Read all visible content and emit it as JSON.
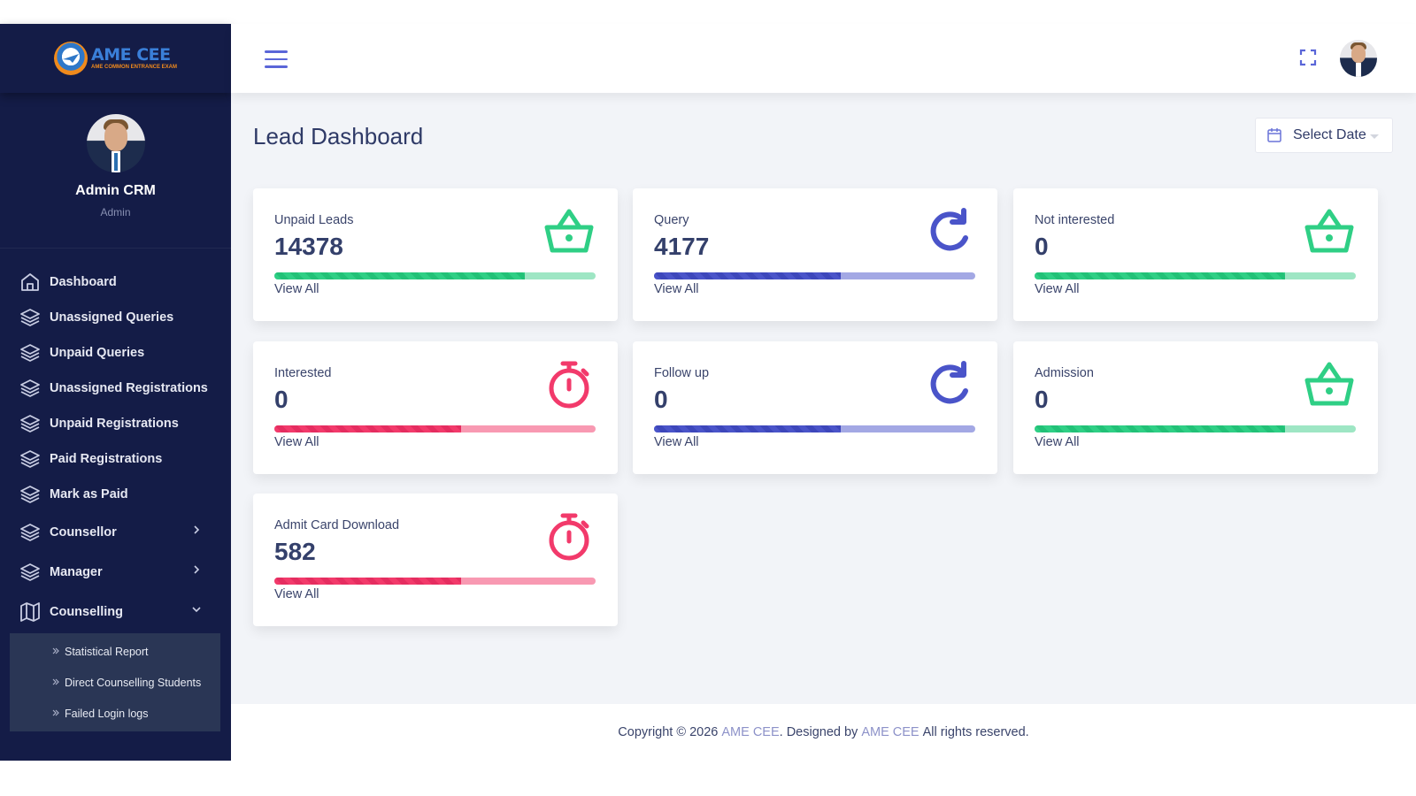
{
  "brand": {
    "title": "AME CEE",
    "subtitle": "AME COMMON ENTRANCE EXAM"
  },
  "profile": {
    "name": "Admin CRM",
    "role": "Admin"
  },
  "nav": {
    "items": [
      {
        "label": "Dashboard",
        "icon": "home-icon"
      },
      {
        "label": "Unassigned Queries",
        "icon": "layers-icon"
      },
      {
        "label": "Unpaid Queries",
        "icon": "layers-icon"
      },
      {
        "label": "Unassigned Registrations",
        "icon": "layers-icon"
      },
      {
        "label": "Unpaid Registrations",
        "icon": "layers-icon"
      },
      {
        "label": "Paid Registrations",
        "icon": "layers-icon"
      },
      {
        "label": "Mark as Paid",
        "icon": "layers-icon"
      },
      {
        "label": "Counsellor",
        "icon": "layers-icon",
        "chevron": "right"
      },
      {
        "label": "Manager",
        "icon": "layers-icon",
        "chevron": "right"
      },
      {
        "label": "Counselling",
        "icon": "map-icon",
        "chevron": "down"
      }
    ],
    "submenu": [
      {
        "label": "Statistical Report"
      },
      {
        "label": "Direct Counselling Students"
      },
      {
        "label": "Failed Login logs"
      }
    ]
  },
  "page": {
    "title": "Lead Dashboard",
    "date_button": "Select Date"
  },
  "cards": [
    {
      "label": "Unpaid Leads",
      "value": "14378",
      "link": "View All",
      "icon": "basket-icon",
      "color": "green",
      "progress": 0.78
    },
    {
      "label": "Query",
      "value": "4177",
      "link": "View All",
      "icon": "refresh-icon",
      "color": "blue",
      "progress": 0.58
    },
    {
      "label": "Not interested",
      "value": "0",
      "link": "View All",
      "icon": "basket-icon",
      "color": "green",
      "progress": 0.78
    },
    {
      "label": "Interested",
      "value": "0",
      "link": "View All",
      "icon": "stopwatch-icon",
      "color": "red",
      "progress": 0.58
    },
    {
      "label": "Follow up",
      "value": "0",
      "link": "View All",
      "icon": "refresh-icon",
      "color": "blue",
      "progress": 0.58
    },
    {
      "label": "Admission",
      "value": "0",
      "link": "View All",
      "icon": "basket-icon",
      "color": "green",
      "progress": 0.78
    },
    {
      "label": "Admit Card Download",
      "value": "582",
      "link": "View All",
      "icon": "stopwatch-icon",
      "color": "red",
      "progress": 0.58
    }
  ],
  "footer": {
    "prefix": "Copyright © 2026 ",
    "brand1": "AME CEE",
    "middle": ". Designed by ",
    "brand2": "AME CEE",
    "suffix": " All rights reserved."
  },
  "colors": {
    "sidebar": "#141c47",
    "green": "#2fcf85",
    "blue": "#4a54c9",
    "red": "#f23a6b",
    "accent": "#5a66d8"
  }
}
